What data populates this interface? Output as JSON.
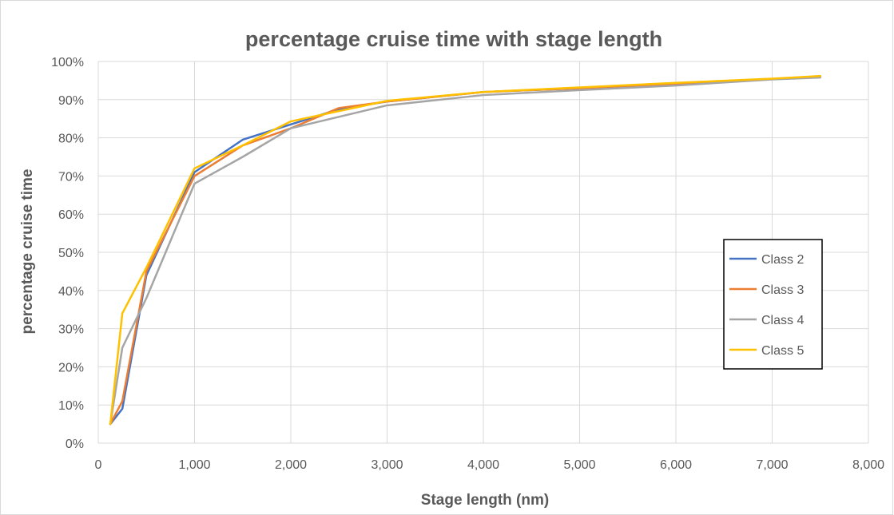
{
  "chart_data": {
    "type": "line",
    "title": "percentage cruise time with stage length",
    "xlabel": "Stage length (nm)",
    "ylabel": "percentage cruise time",
    "xlim": [
      0,
      8000
    ],
    "ylim": [
      0,
      100
    ],
    "x_ticks": [
      0,
      1000,
      2000,
      3000,
      4000,
      5000,
      6000,
      7000,
      8000
    ],
    "x_tick_labels": [
      "0",
      "1,000",
      "2,000",
      "3,000",
      "4,000",
      "5,000",
      "6,000",
      "7,000",
      "8,000"
    ],
    "y_ticks": [
      0,
      10,
      20,
      30,
      40,
      50,
      60,
      70,
      80,
      90,
      100
    ],
    "y_tick_labels": [
      "0%",
      "10%",
      "20%",
      "30%",
      "40%",
      "50%",
      "60%",
      "70%",
      "80%",
      "90%",
      "100%"
    ],
    "grid": true,
    "legend_position": "right",
    "x": [
      125,
      250,
      500,
      1000,
      1500,
      2000,
      2500,
      3000,
      4000,
      5000,
      6000,
      7000,
      7500
    ],
    "series": [
      {
        "name": "Class 2",
        "color": "#4472c4",
        "values": [
          5,
          9,
          44,
          71,
          79.5,
          83.5,
          87.5,
          89.5,
          92,
          93,
          94.2,
          95.4,
          96
        ]
      },
      {
        "name": "Class 3",
        "color": "#ed7d31",
        "values": [
          5,
          11,
          45,
          70,
          78,
          82.5,
          87.8,
          89.5,
          92,
          93,
          94.2,
          95.4,
          96
        ]
      },
      {
        "name": "Class 4",
        "color": "#a5a5a5",
        "values": [
          5,
          25,
          38,
          68,
          75,
          82.5,
          85.5,
          88.5,
          91.2,
          92.5,
          93.7,
          95.3,
          95.8
        ]
      },
      {
        "name": "Class 5",
        "color": "#ffc000",
        "values": [
          5,
          34,
          46,
          72,
          78,
          84.3,
          87,
          89.7,
          92,
          93.2,
          94.4,
          95.5,
          96.2
        ]
      }
    ]
  }
}
